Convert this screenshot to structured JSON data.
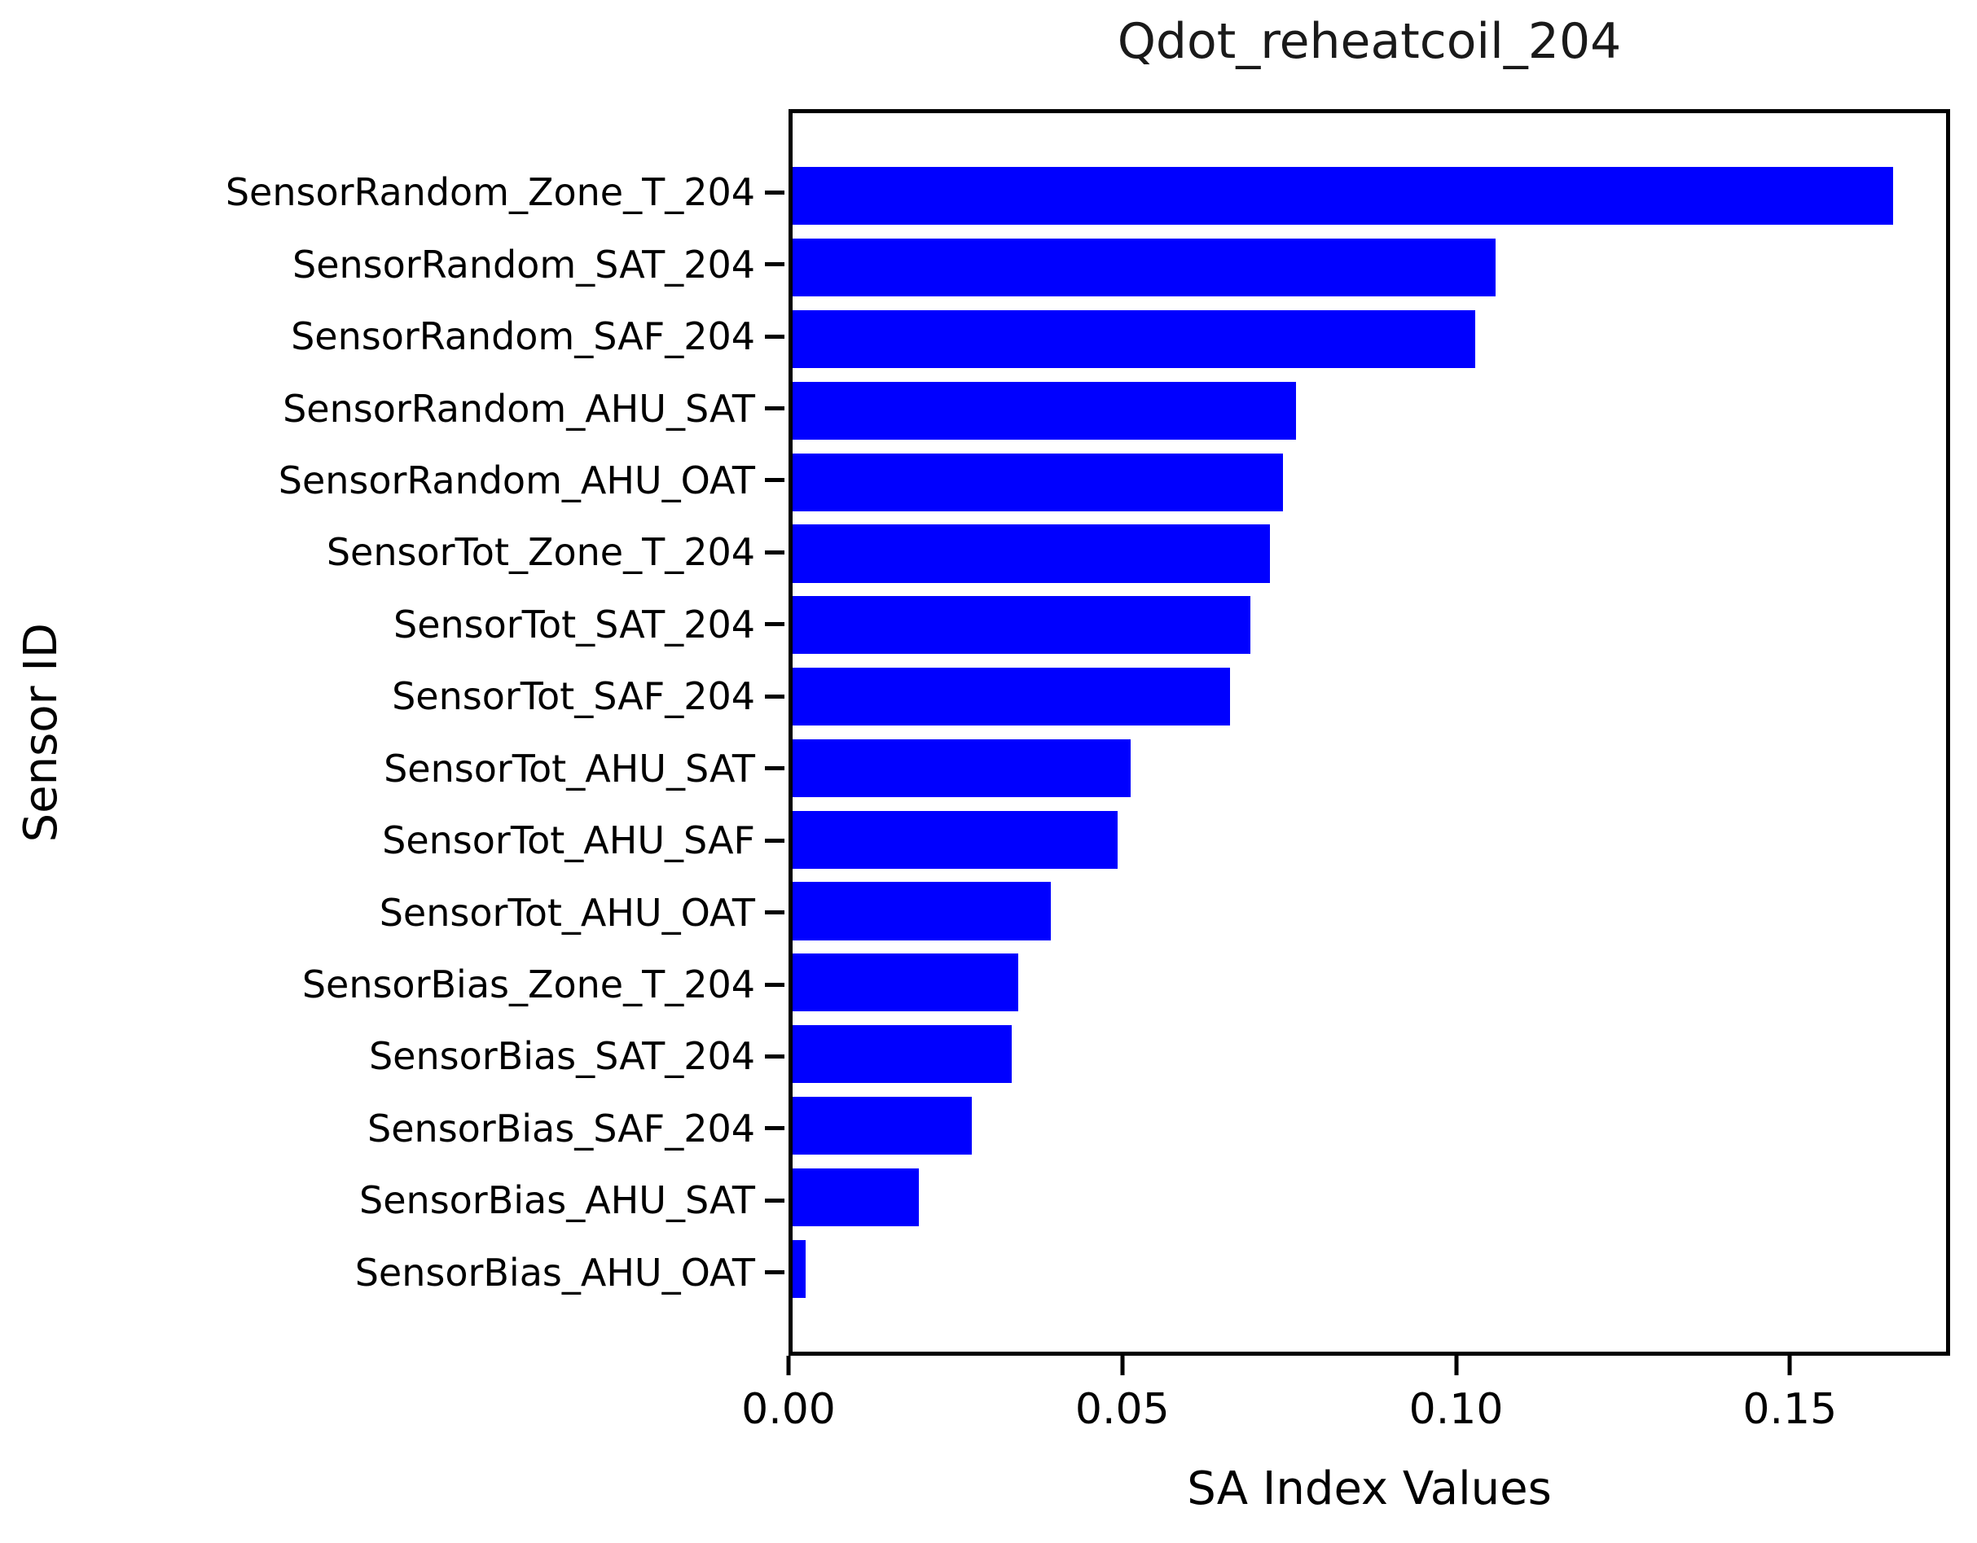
{
  "figure": {
    "title": "Qdot_reheatcoil_204",
    "xlabel": "SA Index Values",
    "ylabel": "Sensor ID"
  },
  "chart_data": {
    "type": "bar",
    "orientation": "horizontal",
    "title": "Qdot_reheatcoil_204",
    "xlabel": "SA Index Values",
    "ylabel": "Sensor ID",
    "grid": false,
    "legend": null,
    "bar_color": "#0000ff",
    "axis_color": "#000000",
    "xlim": [
      0,
      0.174
    ],
    "xticks": {
      "values": [
        0,
        0.05,
        0.1,
        0.15
      ],
      "labels": [
        "0.00",
        "0.05",
        "0.10",
        "0.15"
      ]
    },
    "categories": [
      "SensorRandom_Zone_T_204",
      "SensorRandom_SAT_204",
      "SensorRandom_SAF_204",
      "SensorRandom_AHU_SAT",
      "SensorRandom_AHU_OAT",
      "SensorTot_Zone_T_204",
      "SensorTot_SAT_204",
      "SensorTot_SAF_204",
      "SensorTot_AHU_SAT",
      "SensorTot_AHU_SAF",
      "SensorTot_AHU_OAT",
      "SensorBias_Zone_T_204",
      "SensorBias_SAT_204",
      "SensorBias_SAF_204",
      "SensorBias_AHU_SAT",
      "SensorBias_AHU_OAT"
    ],
    "values": [
      0.166,
      0.106,
      0.103,
      0.076,
      0.074,
      0.072,
      0.069,
      0.066,
      0.051,
      0.049,
      0.039,
      0.034,
      0.033,
      0.027,
      0.019,
      0.002
    ]
  }
}
